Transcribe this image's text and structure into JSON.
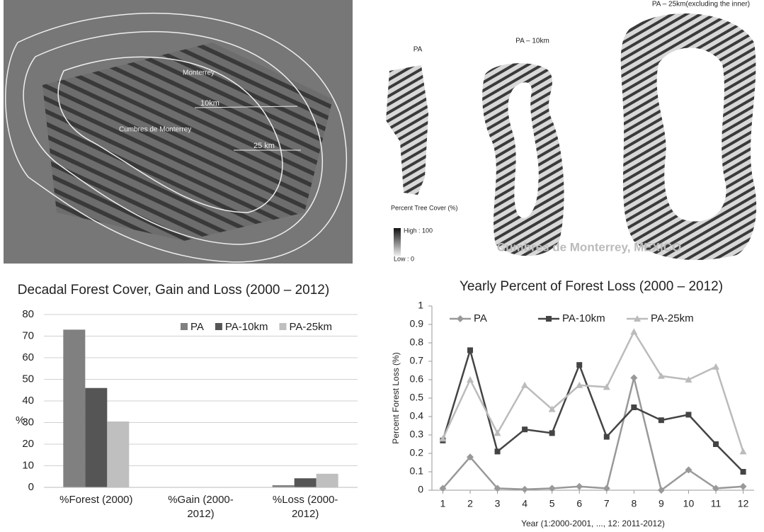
{
  "figure": {
    "map_labels": [
      "Monterrey",
      "Cumbres de Monterrey",
      "10km",
      "25 km"
    ],
    "panels": [
      "PA",
      "PA – 10km",
      "PA – 25km(excluding the inner)"
    ],
    "legend_title": "Percent Tree Cover (%)",
    "legend_high": "High : 100",
    "legend_low": "Low : 0",
    "caption": "Cumbres de Monterrey, MEXICO"
  },
  "chart_data": [
    {
      "type": "bar",
      "title": "Decadal Forest Cover, Gain and Loss (2000 – 2012)",
      "categories": [
        "%Forest (2000)",
        "%Gain (2000-2012)",
        "%Loss (2000-2012)"
      ],
      "series": [
        {
          "name": "PA",
          "color": "#808080",
          "values": [
            73,
            0,
            1
          ]
        },
        {
          "name": "PA-10km",
          "color": "#555555",
          "values": [
            46,
            0,
            4.2
          ]
        },
        {
          "name": "PA-25km",
          "color": "#bfbfbf",
          "values": [
            30.5,
            0,
            6.3
          ]
        }
      ],
      "y_label": "%",
      "ylim": [
        0,
        80
      ],
      "yticks": [
        0,
        10,
        20,
        30,
        40,
        50,
        60,
        70,
        80
      ],
      "grid": true,
      "legend": "top-right"
    },
    {
      "type": "line",
      "title": "Yearly Percent of Forest Loss (2000 – 2012)",
      "x": [
        1,
        2,
        3,
        4,
        5,
        6,
        7,
        8,
        9,
        10,
        11,
        12
      ],
      "series": [
        {
          "name": "PA",
          "color": "#999999",
          "marker": "diamond",
          "values": [
            0.01,
            0.18,
            0.01,
            0.005,
            0.01,
            0.02,
            0.01,
            0.61,
            0.0,
            0.11,
            0.01,
            0.02
          ]
        },
        {
          "name": "PA-10km",
          "color": "#444444",
          "marker": "square",
          "values": [
            0.27,
            0.76,
            0.21,
            0.33,
            0.31,
            0.68,
            0.29,
            0.45,
            0.38,
            0.41,
            0.25,
            0.1
          ]
        },
        {
          "name": "PA-25km",
          "color": "#bbbbbb",
          "marker": "triangle",
          "values": [
            0.28,
            0.6,
            0.31,
            0.57,
            0.44,
            0.57,
            0.56,
            0.86,
            0.62,
            0.6,
            0.67,
            0.21
          ]
        }
      ],
      "x_label": "Year (1:2000-2001, ..., 12: 2011-2012)",
      "y_label": "Percent Forest Loss (%)",
      "xlim": [
        0.6,
        12.4
      ],
      "xticks": [
        1,
        2,
        3,
        4,
        5,
        6,
        7,
        8,
        9,
        10,
        11,
        12
      ],
      "ylim": [
        0,
        1
      ],
      "yticks": [
        0,
        0.1,
        0.2,
        0.3,
        0.4,
        0.5,
        0.6,
        0.7,
        0.8,
        0.9,
        1
      ],
      "grid": false,
      "legend": "top"
    }
  ]
}
